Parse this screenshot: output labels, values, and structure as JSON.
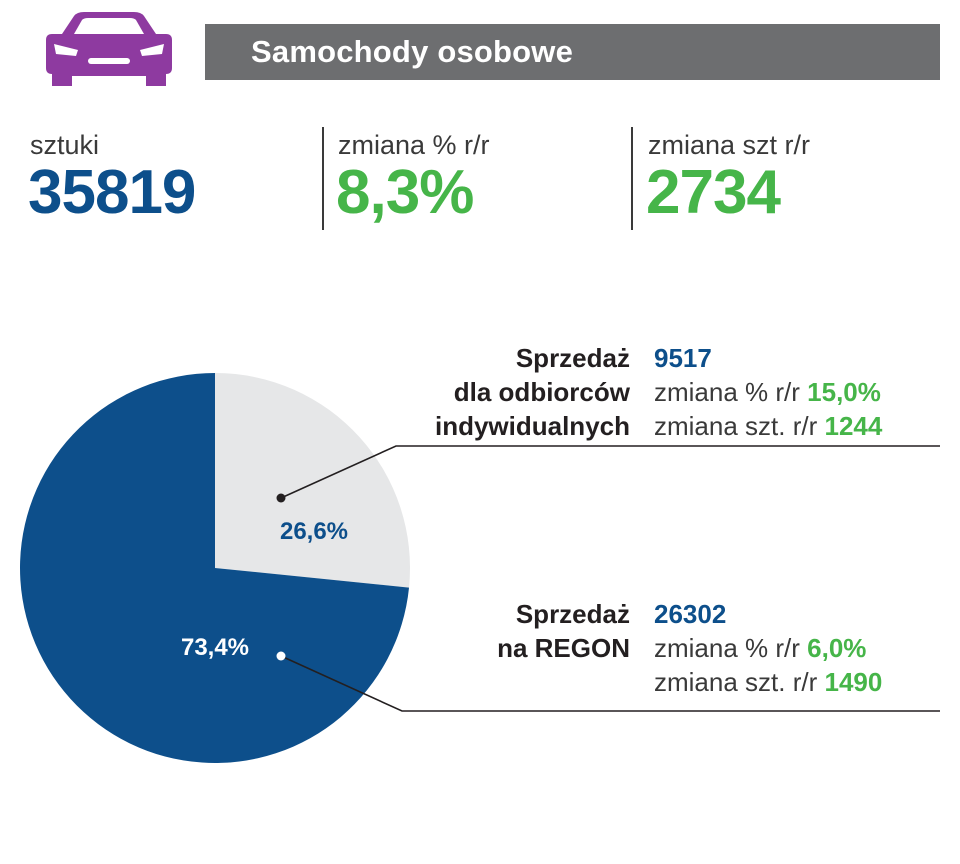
{
  "header": {
    "title": "Samochody osobowe",
    "icon": "car-icon",
    "icon_color": "#8e3aa0",
    "bar_color": "#6d6e70"
  },
  "stats": {
    "units": {
      "label": "sztuki",
      "value": "35819"
    },
    "pct_change": {
      "label": "zmiana % r/r",
      "value": "8,3%"
    },
    "unit_change": {
      "label": "zmiana szt r/r",
      "value": "2734"
    }
  },
  "segments": {
    "individual": {
      "title_line1": "Sprzedaż",
      "title_line2": "dla odbiorców",
      "title_line3": "indywidualnych",
      "units": "9517",
      "pct_label": "zmiana % r/r",
      "pct_value": "15,0%",
      "units_label": "zmiana szt. r/r",
      "units_value": "1244"
    },
    "regon": {
      "title_line1": "Sprzedaż",
      "title_line2": "na REGON",
      "units": "26302",
      "pct_label": "zmiana % r/r",
      "pct_value": "6,0%",
      "units_label": "zmiana szt. r/r",
      "units_value": "1490"
    }
  },
  "colors": {
    "blue": "#0d4f8b",
    "green": "#46b549",
    "light": "#e6e7e8"
  },
  "chart_data": {
    "type": "pie",
    "title": "Samochody osobowe",
    "slices": [
      {
        "name": "Sprzedaż dla odbiorców indywidualnych",
        "value": 26.6,
        "label": "26,6%",
        "color": "#e6e7e8",
        "label_color": "#0d4f8b"
      },
      {
        "name": "Sprzedaż na REGON",
        "value": 73.4,
        "label": "73,4%",
        "color": "#0d4f8b",
        "label_color": "#ffffff"
      }
    ]
  }
}
